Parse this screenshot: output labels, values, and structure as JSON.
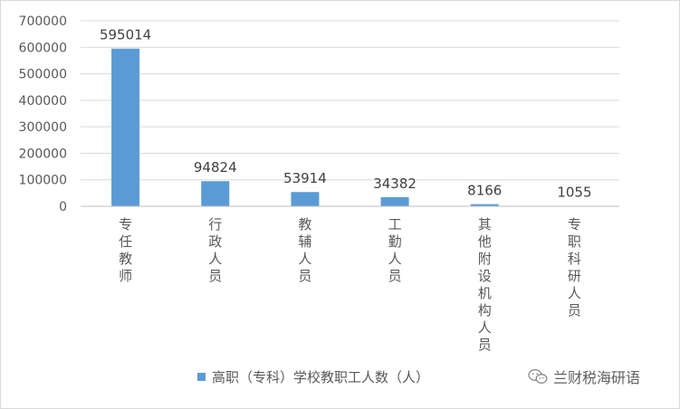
{
  "chart_data": {
    "type": "bar",
    "categories": [
      "专任教师",
      "行政人员",
      "教辅人员",
      "工勤人员",
      "其他附设机构人员",
      "专职科研人员"
    ],
    "series": [
      {
        "name": "高职（专科）学校教职工人数（人）",
        "values": [
          595014,
          94824,
          53914,
          34382,
          8166,
          1055
        ]
      }
    ],
    "y_ticks": [
      "0",
      "100000",
      "200000",
      "300000",
      "400000",
      "500000",
      "600000",
      "700000"
    ],
    "ylim": [
      0,
      700000
    ],
    "grid": true,
    "legend_position": "bottom",
    "bar_color": "#5b9bd5"
  },
  "legend": {
    "label": "高职（专科）学校教职工人数（人）"
  },
  "watermark": {
    "text": "兰财税海研语"
  }
}
